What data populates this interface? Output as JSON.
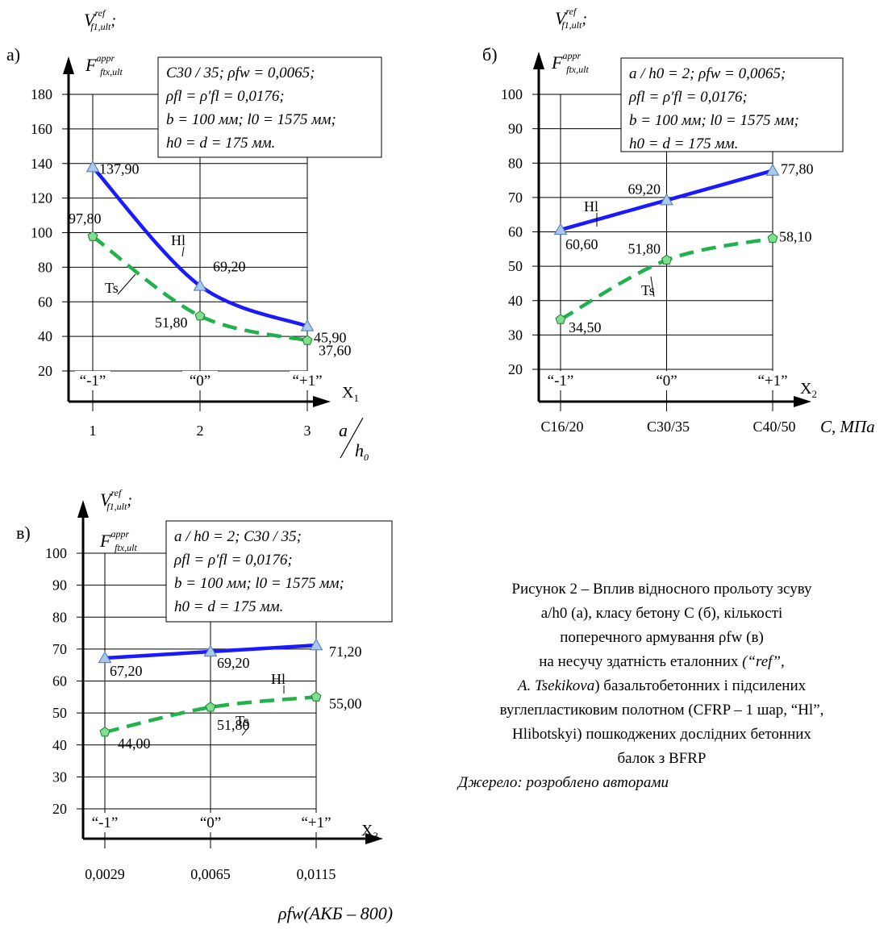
{
  "chart_data": [
    {
      "type": "line",
      "panel_label": "а)",
      "ylabel_lines": [
        {
          "main": "V",
          "sup": "ref",
          "sub": "f1,ult",
          "tail": ";"
        },
        {
          "main": "F",
          "sup": "appr",
          "sub": "ftx,ult",
          "tail": ""
        }
      ],
      "ylim": [
        20,
        180
      ],
      "yticks": [
        20,
        40,
        60,
        80,
        100,
        120,
        140,
        160,
        180
      ],
      "coded_levels": [
        "“-1”",
        "“0”",
        "“+1”"
      ],
      "factor_label": {
        "main": "X",
        "sub": "1"
      },
      "x_natural_labels": [
        "1",
        "2",
        "3"
      ],
      "xlabel": {
        "main": "a",
        "sub": "0",
        "den": "h"
      },
      "info_lines": [
        "C30 / 35; ρfw = 0,0065;",
        "ρfl = ρ′fl = 0,0176;",
        "b = 100 мм; l0 = 1575 мм;",
        "h0 = d = 175 мм."
      ],
      "series": [
        {
          "name": "Hl",
          "color": "#1a1aff",
          "style": "solid",
          "marker": "triangle",
          "values": [
            137.9,
            69.2,
            45.9
          ],
          "labels": [
            "137,90",
            "69,20",
            "45,90"
          ]
        },
        {
          "name": "Ts",
          "color": "#22b14c",
          "style": "dashed",
          "marker": "pentagon",
          "values": [
            97.8,
            51.8,
            37.6
          ],
          "labels": [
            "97,80",
            "51,80",
            "37,60"
          ]
        }
      ]
    },
    {
      "type": "line",
      "panel_label": "б)",
      "ylabel_lines": [
        {
          "main": "V",
          "sup": "ref",
          "sub": "f1,ult",
          "tail": ";"
        },
        {
          "main": "F",
          "sup": "appr",
          "sub": "ftx,ult",
          "tail": ""
        }
      ],
      "ylim": [
        20,
        100
      ],
      "yticks": [
        20,
        30,
        40,
        50,
        60,
        70,
        80,
        90,
        100
      ],
      "coded_levels": [
        "“-1”",
        "“0”",
        "“+1”"
      ],
      "factor_label": {
        "main": "X",
        "sub": "2"
      },
      "x_natural_labels": [
        "C16/20",
        "C30/35",
        "C40/50"
      ],
      "xlabel": {
        "main": "C, МПа"
      },
      "info_lines": [
        "a / h0 = 2; ρfw = 0,0065;",
        "ρfl = ρ′fl = 0,0176;",
        "b = 100 мм; l0 = 1575 мм;",
        "h0 = d = 175 мм."
      ],
      "series": [
        {
          "name": "Hl",
          "color": "#1a1aff",
          "style": "solid",
          "marker": "triangle",
          "values": [
            60.6,
            69.2,
            77.8
          ],
          "labels": [
            "60,60",
            "69,20",
            "77,80"
          ]
        },
        {
          "name": "Ts",
          "color": "#22b14c",
          "style": "dashed",
          "marker": "pentagon",
          "values": [
            34.5,
            51.8,
            58.1
          ],
          "labels": [
            "34,50",
            "51,80",
            "58,10"
          ]
        }
      ]
    },
    {
      "type": "line",
      "panel_label": "в)",
      "ylabel_lines": [
        {
          "main": "V",
          "sup": "ref",
          "sub": "f1,ult",
          "tail": ";"
        },
        {
          "main": "F",
          "sup": "appr",
          "sub": "ftx,ult",
          "tail": ""
        }
      ],
      "ylim": [
        20,
        100
      ],
      "yticks": [
        20,
        30,
        40,
        50,
        60,
        70,
        80,
        90,
        100
      ],
      "coded_levels": [
        "“-1”",
        "“0”",
        "“+1”"
      ],
      "factor_label": {
        "main": "X",
        "sub": "3"
      },
      "x_natural_labels": [
        "0,0029",
        "0,0065",
        "0,0115"
      ],
      "xlabel": {
        "main": "ρfw(АКБ – 800)"
      },
      "info_lines": [
        "a / h0 = 2; C30 / 35;",
        "ρfl = ρ′fl = 0,0176;",
        "b = 100 мм; l0 = 1575 мм;",
        "h0 = d = 175 мм."
      ],
      "series": [
        {
          "name": "Hl",
          "color": "#1a1aff",
          "style": "solid",
          "marker": "triangle",
          "values": [
            67.2,
            69.2,
            71.2
          ],
          "labels": [
            "67,20",
            "69,20",
            "71,20"
          ]
        },
        {
          "name": "Ts",
          "color": "#22b14c",
          "style": "dashed",
          "marker": "pentagon",
          "values": [
            44.0,
            51.8,
            55.0
          ],
          "labels": [
            "44,00",
            "51,80",
            "55,00"
          ]
        }
      ]
    }
  ],
  "caption": {
    "line1": "Рисунок 2 – Вплив відносного прольоту зсуву",
    "line2": "a/h0 (а), класу бетону C (б), кількості",
    "line3": "поперечного армування ρfw (в)",
    "line4_plain": "на несучу здатність еталонних",
    "line4_italic": "(“ref”,",
    "line5_italic": "A. Tsekikova",
    "line5_plain": ") базальтобетонних і підсилених",
    "line6": "вуглепластиковим полотном (CFRP – 1 шар, “Hl”,",
    "line7": "Hlibotskyi) пошкоджених дослідних бетонних",
    "line8": "балок з BFRP",
    "source": "Джерело: розроблено авторами"
  }
}
